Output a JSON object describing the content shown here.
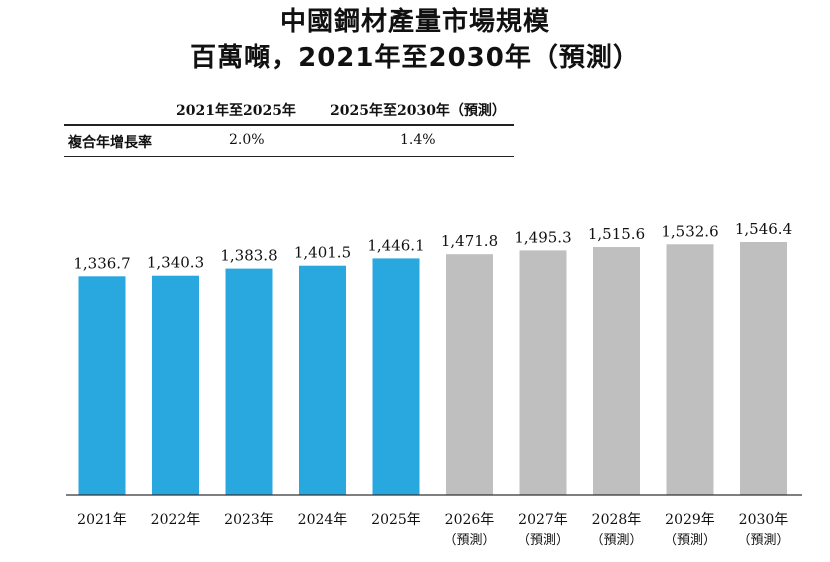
{
  "title": {
    "line1": "中國鋼材產量市場規模",
    "line2": "百萬噸，2021年至2030年（預測）"
  },
  "cagr_table": {
    "headers": [
      "2021年至2025年",
      "2025年至2030年（預測）"
    ],
    "row_label": "複合年增長率",
    "values": [
      "2.0%",
      "1.4%"
    ]
  },
  "colors": {
    "actual": "#29a8e0",
    "forecast": "#bfbfbf",
    "axis": "#333333"
  },
  "chart_data": {
    "type": "bar",
    "title": "中國鋼材產量市場規模",
    "ylabel": "",
    "categories": [
      "2021年",
      "2022年",
      "2023年",
      "2024年",
      "2025年",
      "2026年",
      "2027年",
      "2028年",
      "2029年",
      "2030年"
    ],
    "category_sublabels": [
      "",
      "",
      "",
      "",
      "",
      "（預測）",
      "（預測）",
      "（預測）",
      "（預測）",
      "（預測）"
    ],
    "values": [
      1336.7,
      1340.3,
      1383.8,
      1401.5,
      1446.1,
      1471.8,
      1495.3,
      1515.6,
      1532.6,
      1546.4
    ],
    "value_labels": [
      "1,336.7",
      "1,340.3",
      "1,383.8",
      "1,401.5",
      "1,446.1",
      "1,471.8",
      "1,495.3",
      "1,515.6",
      "1,532.6",
      "1,546.4"
    ],
    "forecast": [
      false,
      false,
      false,
      false,
      false,
      true,
      true,
      true,
      true,
      true
    ],
    "ylim": [
      0,
      1546.4
    ],
    "grid": false,
    "legend": "none"
  }
}
